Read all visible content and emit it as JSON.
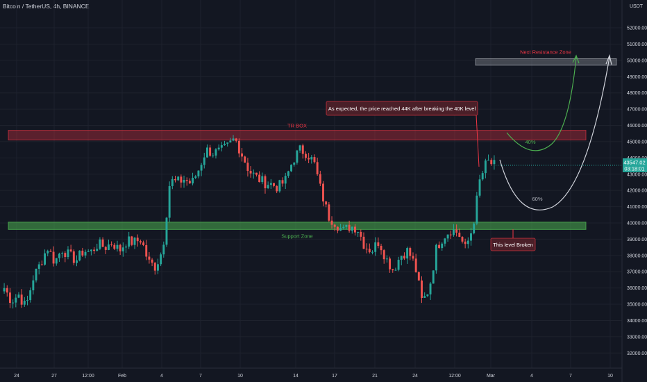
{
  "header": {
    "title": "Bitcoin / TetherUS, 4h, BINANCE",
    "unit": "USDT"
  },
  "price_badge": {
    "price": "43547.02",
    "countdown": "03:18:01"
  },
  "annotations": {
    "tr_box": "TR BOX",
    "support_zone": "Support Zone",
    "next_resistance": "Next Resistance Zone",
    "callout": "As expected, the price reached 44K after breaking the 40K level",
    "broken": "This level Broken",
    "path_40": "40%",
    "path_60": "60%"
  },
  "colors": {
    "up": "#26a69a",
    "down": "#ef5350",
    "bg": "#131722",
    "resistance": "#f23645",
    "support": "#4caf50"
  },
  "chart_data": {
    "type": "candlestick",
    "title": "Bitcoin / TetherUS, 4h, BINANCE",
    "ylim": [
      31500,
      52600
    ],
    "yticks": [
      32000,
      33000,
      34000,
      35000,
      36000,
      37000,
      38000,
      39000,
      40000,
      41000,
      42000,
      43000,
      44000,
      45000,
      46000,
      47000,
      48000,
      49000,
      50000,
      51000,
      52000
    ],
    "ytick_labels": [
      "32000.00",
      "33000.00",
      "34000.00",
      "35000.00",
      "36000.00",
      "37000.00",
      "38000.00",
      "39000.00",
      "40000.00",
      "41000.00",
      "42000.00",
      "43000.00",
      "44000.00",
      "45000.00",
      "46000.00",
      "47000.00",
      "48000.00",
      "49000.00",
      "50000.00",
      "51000.00",
      "52000.00"
    ],
    "xticks": [
      "24",
      "27",
      "12:00",
      "Feb",
      "4",
      "7",
      "10",
      "14",
      "17",
      "21",
      "24",
      "12:00",
      "Mar",
      "4",
      "7",
      "10"
    ],
    "close_path": [
      36000,
      35200,
      35600,
      34800,
      36600,
      37500,
      38500,
      37600,
      38400,
      38000,
      37700,
      38300,
      38200,
      38700,
      38500,
      38800,
      38300,
      38900,
      38800,
      39000,
      37600,
      37300,
      38400,
      42600,
      42500,
      42700,
      42400,
      43300,
      44500,
      44300,
      44400,
      44700,
      45200,
      44200,
      43200,
      42800,
      42500,
      42400,
      42200,
      42600,
      43800,
      44500,
      44300,
      43700,
      41900,
      40400,
      40000,
      39500,
      39800,
      39700,
      38600,
      38300,
      38900,
      37800,
      37100,
      38000,
      38300,
      37400,
      35100,
      36000,
      38500,
      39200,
      39600,
      39400,
      38400,
      39700,
      42600,
      43800,
      43547
    ],
    "zones": {
      "tr_box": [
        45100,
        45700
      ],
      "support": [
        39600,
        40050
      ],
      "next_resistance": [
        49700,
        50100
      ]
    }
  }
}
